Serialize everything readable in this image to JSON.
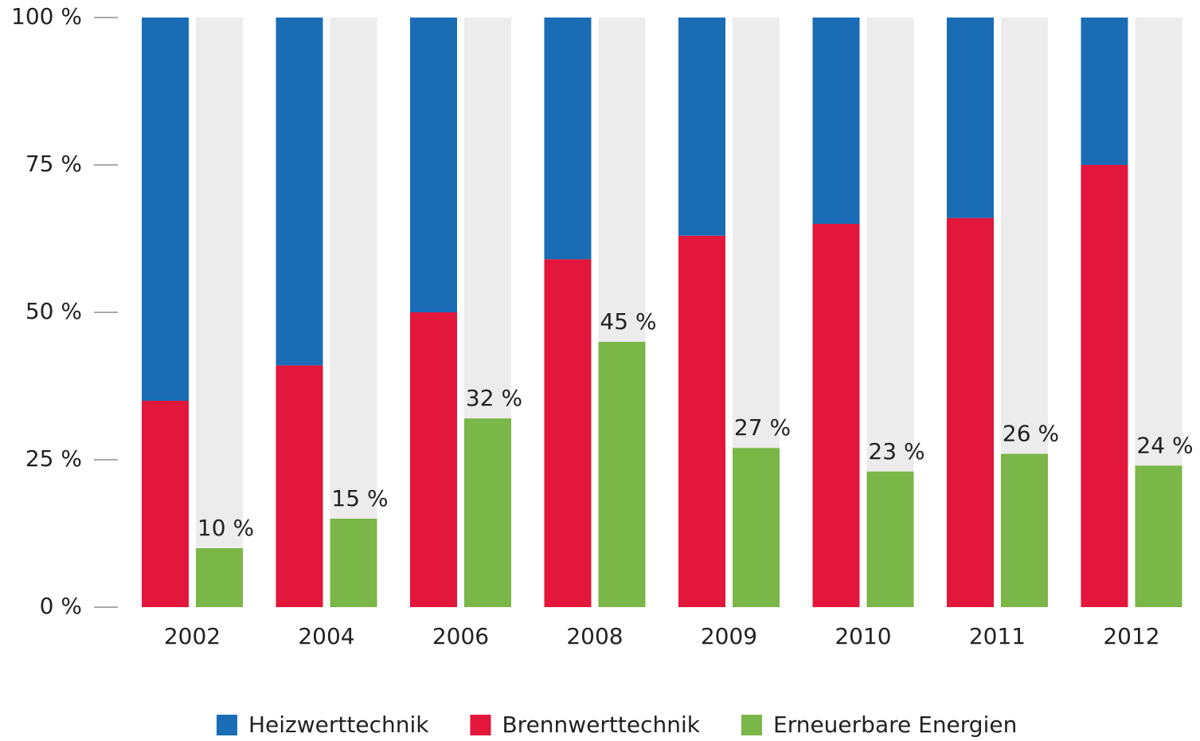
{
  "chart_data": {
    "type": "bar",
    "categories": [
      "2002",
      "2004",
      "2006",
      "2008",
      "2009",
      "2010",
      "2011",
      "2012"
    ],
    "series": [
      {
        "name": "Heizwerttechnik",
        "color": "#1a6db5",
        "values": [
          65,
          59,
          50,
          41,
          37,
          35,
          34,
          25
        ]
      },
      {
        "name": "Brennwerttechnik",
        "color": "#e3173b",
        "values": [
          35,
          41,
          50,
          59,
          63,
          65,
          66,
          75
        ]
      },
      {
        "name": "Erneuerbare Energien",
        "color": "#7ab648",
        "values": [
          10,
          15,
          32,
          45,
          27,
          23,
          26,
          24
        ],
        "value_labels": [
          "10 %",
          "15 %",
          "32 %",
          "45 %",
          "27 %",
          "23 %",
          "26 %",
          "24 %"
        ]
      }
    ],
    "ylim": [
      0,
      100
    ],
    "yticks": [
      {
        "value": 0,
        "label": "0 %"
      },
      {
        "value": 25,
        "label": "25 %"
      },
      {
        "value": 50,
        "label": "50 %"
      },
      {
        "value": 75,
        "label": "75 %"
      },
      {
        "value": 100,
        "label": "100 %"
      }
    ],
    "legend": "bottom"
  }
}
